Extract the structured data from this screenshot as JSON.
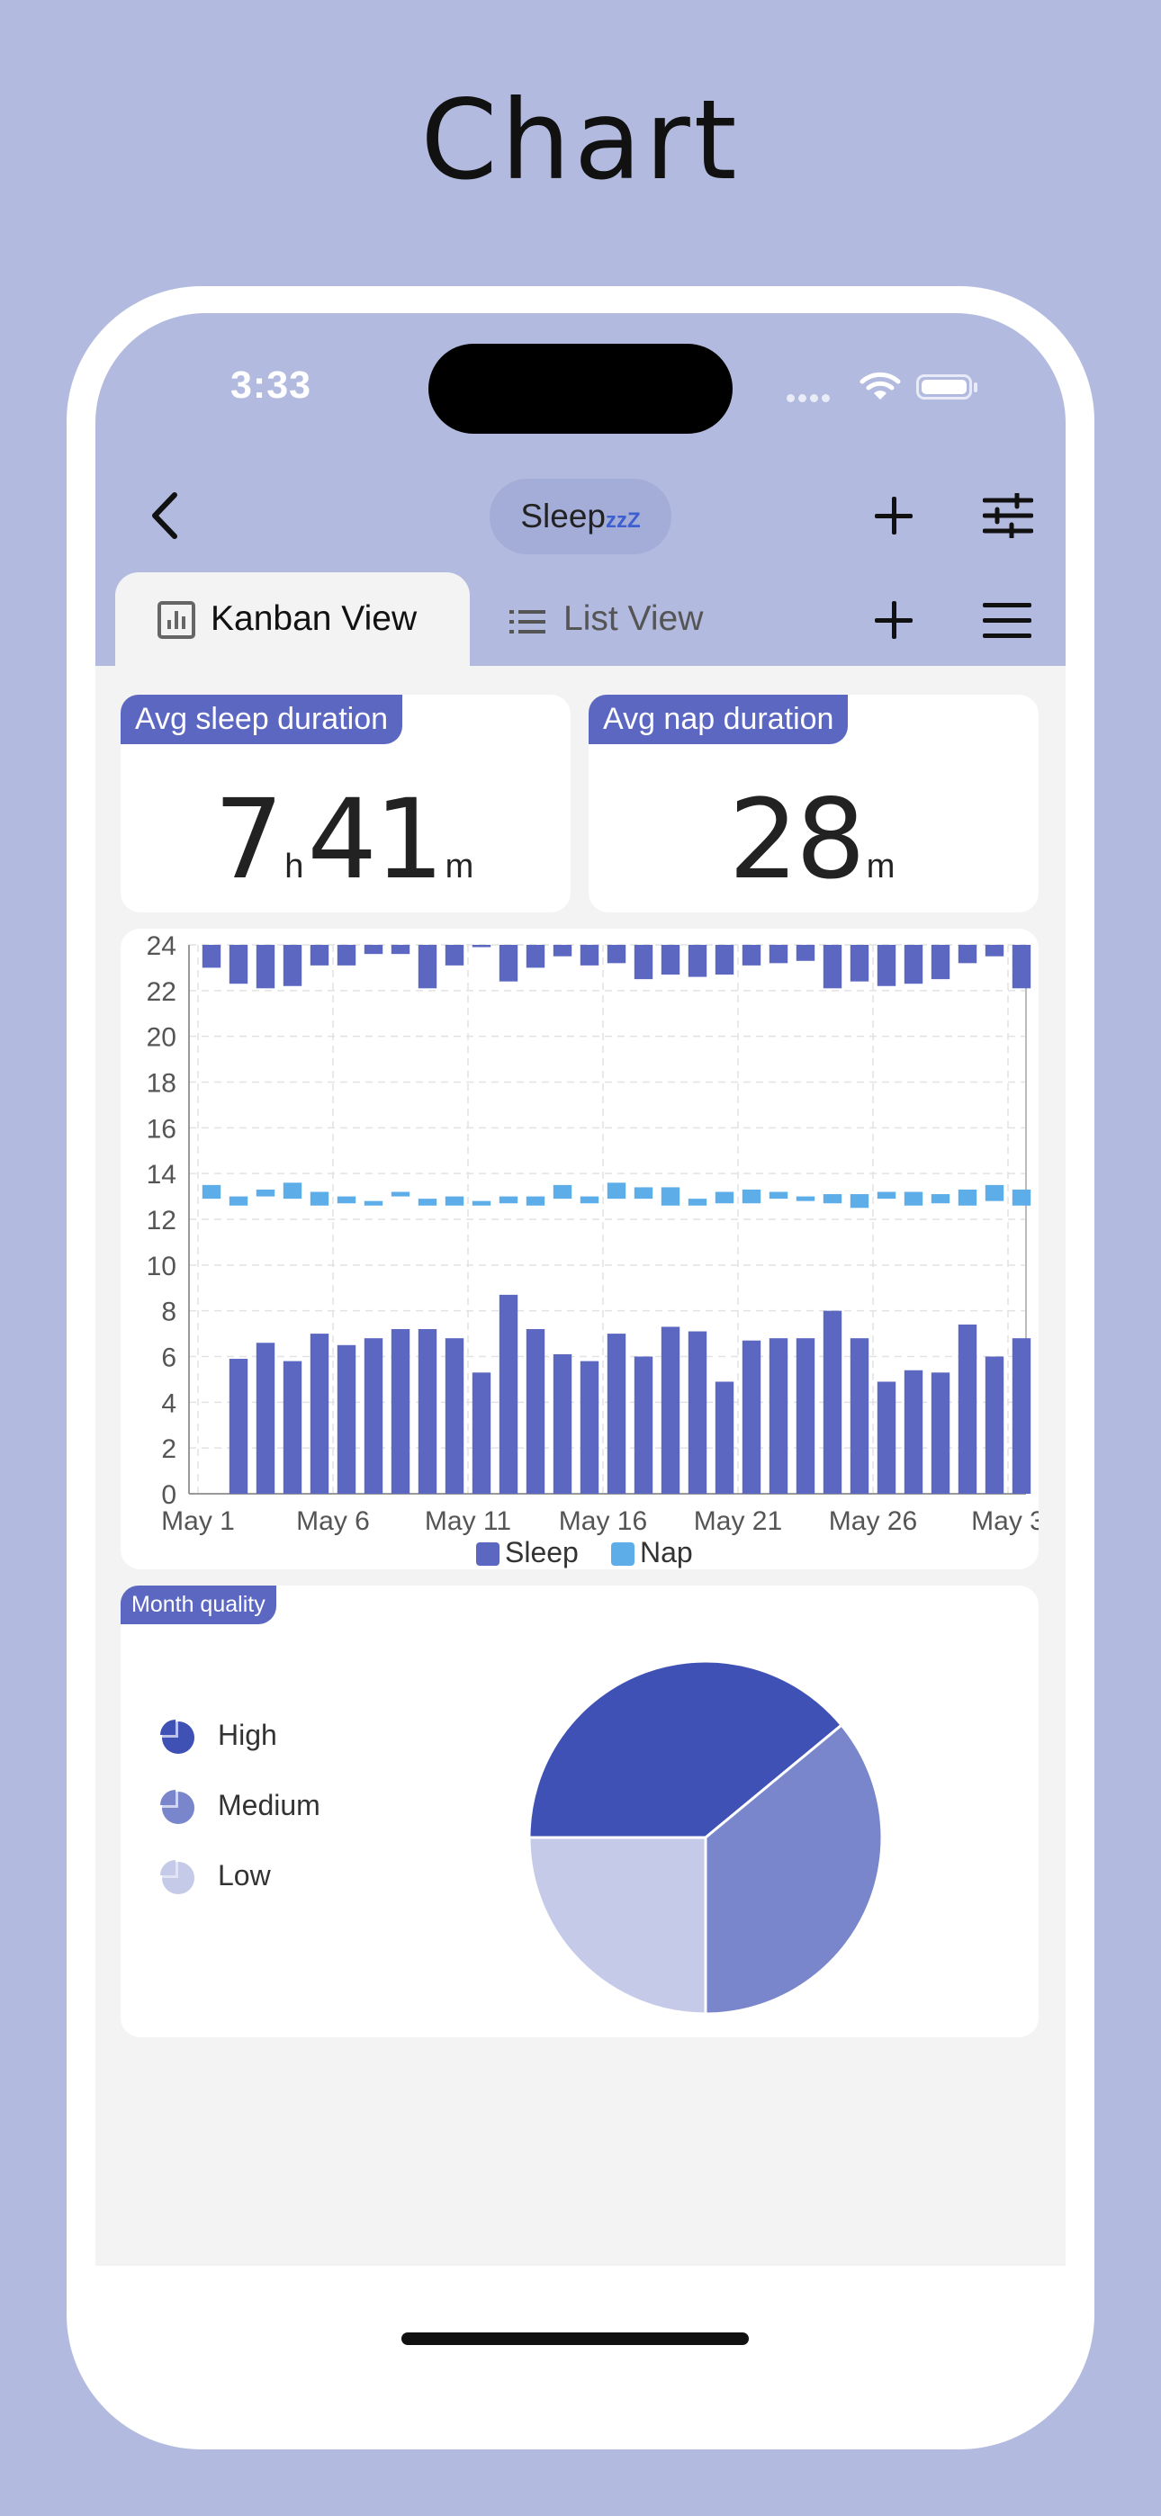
{
  "page_heading": "Chart",
  "status_bar": {
    "time": "3:33"
  },
  "nav": {
    "title": "Sleep",
    "title_zzz": "zzZ"
  },
  "tabs": [
    {
      "label": "Kanban View",
      "active": true,
      "icon": "bar-chart-icon"
    },
    {
      "label": "List View",
      "active": false,
      "icon": "list-icon"
    }
  ],
  "stats": {
    "sleep": {
      "label": "Avg sleep duration",
      "hours": "7",
      "hours_unit": "h",
      "minutes": "41",
      "minutes_unit": "m"
    },
    "nap": {
      "label": "Avg nap duration",
      "minutes": "28",
      "minutes_unit": "m"
    }
  },
  "colors": {
    "accent": "#5c67c2",
    "sleep": "#5c67c2",
    "nap": "#5dade9",
    "pie_high": "#3f51b5",
    "pie_medium": "#7986cb",
    "pie_low": "#c5cae9",
    "header": "#b2badf"
  },
  "chart_data": [
    {
      "type": "bar",
      "x_tick_labels": [
        "May 1",
        "May 6",
        "May 11",
        "May 16",
        "May 21",
        "May 26",
        "May 3"
      ],
      "y_tick_labels": [
        "0",
        "2",
        "4",
        "6",
        "8",
        "10",
        "12",
        "14",
        "16",
        "18",
        "20",
        "22",
        "24"
      ],
      "ylim": [
        0,
        24
      ],
      "grid": true,
      "legend_position": "bottom",
      "series": [
        {
          "name": "Sleep",
          "values": [
            {
              "d": 1,
              "s": 0,
              "e": 0
            },
            {
              "d": 1,
              "s": 23.0,
              "e": 24
            },
            {
              "d": 2,
              "s": 22.3,
              "e": 24
            },
            {
              "d": 3,
              "s": 22.1,
              "e": 24
            },
            {
              "d": 4,
              "s": 22.2,
              "e": 24
            },
            {
              "d": 5,
              "s": 23.1,
              "e": 24
            },
            {
              "d": 6,
              "s": 23.1,
              "e": 24
            },
            {
              "d": 7,
              "s": 23.6,
              "e": 24
            },
            {
              "d": 8,
              "s": 23.6,
              "e": 24
            },
            {
              "d": 9,
              "s": 22.1,
              "e": 24
            },
            {
              "d": 10,
              "s": 23.1,
              "e": 24
            },
            {
              "d": 11,
              "s": 23.9,
              "e": 24
            },
            {
              "d": 12,
              "s": 22.4,
              "e": 24
            },
            {
              "d": 13,
              "s": 23.0,
              "e": 24
            },
            {
              "d": 14,
              "s": 23.5,
              "e": 24
            },
            {
              "d": 15,
              "s": 23.1,
              "e": 24
            },
            {
              "d": 16,
              "s": 23.2,
              "e": 24
            },
            {
              "d": 17,
              "s": 22.5,
              "e": 24
            },
            {
              "d": 18,
              "s": 22.7,
              "e": 24
            },
            {
              "d": 19,
              "s": 22.6,
              "e": 24
            },
            {
              "d": 20,
              "s": 22.7,
              "e": 24
            },
            {
              "d": 21,
              "s": 23.1,
              "e": 24
            },
            {
              "d": 22,
              "s": 23.2,
              "e": 24
            },
            {
              "d": 23,
              "s": 23.3,
              "e": 24
            },
            {
              "d": 24,
              "s": 22.1,
              "e": 24
            },
            {
              "d": 25,
              "s": 22.4,
              "e": 24
            },
            {
              "d": 26,
              "s": 22.2,
              "e": 24
            },
            {
              "d": 27,
              "s": 22.3,
              "e": 24
            },
            {
              "d": 28,
              "s": 22.5,
              "e": 24
            },
            {
              "d": 29,
              "s": 23.2,
              "e": 24
            },
            {
              "d": 30,
              "s": 23.5,
              "e": 24
            },
            {
              "d": 31,
              "s": 22.1,
              "e": 24
            },
            {
              "d": 2,
              "s": 0,
              "e": 5.9
            },
            {
              "d": 3,
              "s": 0,
              "e": 6.6
            },
            {
              "d": 4,
              "s": 0,
              "e": 5.8
            },
            {
              "d": 5,
              "s": 0,
              "e": 7.0
            },
            {
              "d": 6,
              "s": 0,
              "e": 6.5
            },
            {
              "d": 7,
              "s": 0,
              "e": 6.8
            },
            {
              "d": 8,
              "s": 0,
              "e": 7.2
            },
            {
              "d": 9,
              "s": 0,
              "e": 7.2
            },
            {
              "d": 10,
              "s": 0,
              "e": 6.8
            },
            {
              "d": 11,
              "s": 0,
              "e": 5.3
            },
            {
              "d": 12,
              "s": 0,
              "e": 8.7
            },
            {
              "d": 13,
              "s": 0,
              "e": 7.2
            },
            {
              "d": 14,
              "s": 0,
              "e": 6.1
            },
            {
              "d": 15,
              "s": 0,
              "e": 5.8
            },
            {
              "d": 16,
              "s": 0,
              "e": 7.0
            },
            {
              "d": 17,
              "s": 0,
              "e": 6.0
            },
            {
              "d": 18,
              "s": 0,
              "e": 7.3
            },
            {
              "d": 19,
              "s": 0,
              "e": 7.1
            },
            {
              "d": 20,
              "s": 0,
              "e": 4.9
            },
            {
              "d": 21,
              "s": 0,
              "e": 6.7
            },
            {
              "d": 22,
              "s": 0,
              "e": 6.8
            },
            {
              "d": 23,
              "s": 0,
              "e": 6.8
            },
            {
              "d": 24,
              "s": 0,
              "e": 8.0
            },
            {
              "d": 25,
              "s": 0,
              "e": 6.8
            },
            {
              "d": 26,
              "s": 0,
              "e": 4.9
            },
            {
              "d": 27,
              "s": 0,
              "e": 5.4
            },
            {
              "d": 28,
              "s": 0,
              "e": 5.3
            },
            {
              "d": 29,
              "s": 0,
              "e": 7.4
            },
            {
              "d": 30,
              "s": 0,
              "e": 6.0
            },
            {
              "d": 31,
              "s": 0,
              "e": 6.8
            }
          ]
        },
        {
          "name": "Nap",
          "values": [
            {
              "d": 1,
              "s": 12.9,
              "e": 13.5
            },
            {
              "d": 2,
              "s": 12.6,
              "e": 13.0
            },
            {
              "d": 3,
              "s": 13.0,
              "e": 13.3
            },
            {
              "d": 4,
              "s": 12.9,
              "e": 13.6
            },
            {
              "d": 5,
              "s": 12.6,
              "e": 13.2
            },
            {
              "d": 6,
              "s": 12.7,
              "e": 13.0
            },
            {
              "d": 7,
              "s": 12.6,
              "e": 12.8
            },
            {
              "d": 8,
              "s": 13.0,
              "e": 13.2
            },
            {
              "d": 9,
              "s": 12.6,
              "e": 12.9
            },
            {
              "d": 10,
              "s": 12.6,
              "e": 13.0
            },
            {
              "d": 11,
              "s": 12.6,
              "e": 12.8
            },
            {
              "d": 12,
              "s": 12.7,
              "e": 13.0
            },
            {
              "d": 13,
              "s": 12.6,
              "e": 13.0
            },
            {
              "d": 14,
              "s": 12.9,
              "e": 13.5
            },
            {
              "d": 15,
              "s": 12.7,
              "e": 13.0
            },
            {
              "d": 16,
              "s": 12.9,
              "e": 13.6
            },
            {
              "d": 17,
              "s": 12.9,
              "e": 13.4
            },
            {
              "d": 18,
              "s": 12.6,
              "e": 13.4
            },
            {
              "d": 19,
              "s": 12.6,
              "e": 12.9
            },
            {
              "d": 20,
              "s": 12.7,
              "e": 13.2
            },
            {
              "d": 21,
              "s": 12.7,
              "e": 13.3
            },
            {
              "d": 22,
              "s": 12.9,
              "e": 13.2
            },
            {
              "d": 23,
              "s": 12.8,
              "e": 13.0
            },
            {
              "d": 24,
              "s": 12.7,
              "e": 13.1
            },
            {
              "d": 25,
              "s": 12.5,
              "e": 13.1
            },
            {
              "d": 26,
              "s": 12.9,
              "e": 13.2
            },
            {
              "d": 27,
              "s": 12.6,
              "e": 13.2
            },
            {
              "d": 28,
              "s": 12.7,
              "e": 13.1
            },
            {
              "d": 29,
              "s": 12.6,
              "e": 13.3
            },
            {
              "d": 30,
              "s": 12.8,
              "e": 13.5
            },
            {
              "d": 31,
              "s": 12.6,
              "e": 13.3
            }
          ]
        }
      ]
    },
    {
      "type": "pie",
      "title": "Month quality",
      "legend_position": "left",
      "slices": [
        {
          "name": "High",
          "value": 39
        },
        {
          "name": "Medium",
          "value": 36
        },
        {
          "name": "Low",
          "value": 25
        }
      ]
    }
  ]
}
